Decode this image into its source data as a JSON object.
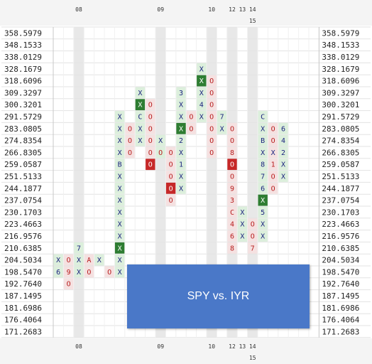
{
  "chart_data": {
    "type": "point_and_figure",
    "overlay_label": "SPY vs. IYR",
    "price_levels": [
      "358.5979",
      "348.1533",
      "338.0129",
      "328.1679",
      "318.6096",
      "309.3297",
      "300.3201",
      "291.5729",
      "283.0805",
      "274.8354",
      "266.8305",
      "259.0587",
      "251.5133",
      "244.1877",
      "237.0754",
      "230.1703",
      "223.4663",
      "216.9576",
      "210.6385",
      "204.5034",
      "198.5470",
      "192.7640",
      "187.1495",
      "181.6986",
      "176.4064",
      "171.2683"
    ],
    "top_markers": [
      {
        "col": 2,
        "line": 1,
        "text": "08"
      },
      {
        "col": 10,
        "line": 1,
        "text": "09"
      },
      {
        "col": 15,
        "line": 1,
        "text": "10"
      },
      {
        "col": 17,
        "line": 1,
        "text": "12"
      },
      {
        "col": 18,
        "line": 1,
        "text": "13"
      },
      {
        "col": 19,
        "line": 1,
        "text": "14"
      },
      {
        "col": 19,
        "line": 2,
        "text": "15"
      }
    ],
    "month_shade_cols": [
      2,
      10,
      15,
      17,
      19
    ],
    "columns": [
      {
        "col": 0,
        "type": "X",
        "marks": [
          [
            19,
            "X"
          ],
          [
            20,
            "6"
          ]
        ]
      },
      {
        "col": 1,
        "type": "O",
        "marks": [
          [
            19,
            "O"
          ],
          [
            20,
            "9"
          ],
          [
            21,
            "O"
          ]
        ]
      },
      {
        "col": 2,
        "type": "X",
        "marks": [
          [
            18,
            "7"
          ],
          [
            19,
            "X"
          ],
          [
            20,
            "X"
          ]
        ]
      },
      {
        "col": 3,
        "type": "O",
        "marks": [
          [
            19,
            "A"
          ],
          [
            20,
            "O"
          ]
        ]
      },
      {
        "col": 4,
        "type": "X",
        "marks": [
          [
            19,
            "X"
          ]
        ]
      },
      {
        "col": 5,
        "type": "O",
        "marks": [
          [
            20,
            "O"
          ]
        ]
      },
      {
        "col": 6,
        "type": "X",
        "marks": [
          [
            7,
            "X"
          ],
          [
            8,
            "X"
          ],
          [
            9,
            "X"
          ],
          [
            10,
            "X"
          ],
          [
            11,
            "B"
          ],
          [
            12,
            "X"
          ],
          [
            13,
            "X"
          ],
          [
            14,
            "X"
          ],
          [
            15,
            "X"
          ],
          [
            16,
            "X"
          ],
          [
            17,
            "X"
          ],
          [
            18,
            "X"
          ],
          [
            19,
            "X"
          ],
          [
            20,
            "X"
          ]
        ]
      },
      {
        "col": 7,
        "type": "O",
        "marks": [
          [
            8,
            "O"
          ],
          [
            9,
            "O"
          ],
          [
            10,
            "O"
          ]
        ]
      },
      {
        "col": 8,
        "type": "X",
        "marks": [
          [
            5,
            "X"
          ],
          [
            6,
            "X"
          ],
          [
            7,
            "C"
          ],
          [
            8,
            "X"
          ],
          [
            9,
            "X"
          ]
        ]
      },
      {
        "col": 9,
        "type": "O",
        "marks": [
          [
            6,
            "O"
          ],
          [
            7,
            "O"
          ],
          [
            8,
            "O"
          ],
          [
            9,
            "O"
          ],
          [
            10,
            "O"
          ],
          [
            11,
            "O"
          ]
        ]
      },
      {
        "col": 10,
        "type": "X",
        "marks": [
          [
            9,
            "X"
          ],
          [
            10,
            "O"
          ]
        ]
      },
      {
        "col": 11,
        "type": "O",
        "marks": [
          [
            10,
            "O"
          ],
          [
            11,
            "O"
          ],
          [
            12,
            "O"
          ],
          [
            13,
            "O"
          ],
          [
            14,
            "O"
          ]
        ]
      },
      {
        "col": 12,
        "type": "X",
        "marks": [
          [
            5,
            "3"
          ],
          [
            6,
            "X"
          ],
          [
            7,
            "X"
          ],
          [
            8,
            "X"
          ],
          [
            9,
            "2"
          ],
          [
            10,
            "X"
          ],
          [
            11,
            "1"
          ],
          [
            12,
            "X"
          ],
          [
            13,
            "X"
          ]
        ]
      },
      {
        "col": 13,
        "type": "O",
        "marks": [
          [
            7,
            "O"
          ],
          [
            8,
            "O"
          ]
        ]
      },
      {
        "col": 14,
        "type": "X",
        "marks": [
          [
            3,
            "X"
          ],
          [
            4,
            "X"
          ],
          [
            5,
            "X"
          ],
          [
            6,
            "4"
          ],
          [
            7,
            "X"
          ]
        ]
      },
      {
        "col": 15,
        "type": "O",
        "marks": [
          [
            4,
            "O"
          ],
          [
            5,
            "O"
          ],
          [
            6,
            "O"
          ],
          [
            7,
            "O"
          ],
          [
            8,
            "O"
          ],
          [
            9,
            "O"
          ],
          [
            10,
            "O"
          ]
        ]
      },
      {
        "col": 16,
        "type": "X",
        "marks": [
          [
            7,
            "7"
          ],
          [
            8,
            "X"
          ]
        ]
      },
      {
        "col": 17,
        "type": "O",
        "marks": [
          [
            8,
            "O"
          ],
          [
            9,
            "O"
          ],
          [
            10,
            "8"
          ],
          [
            11,
            "O"
          ],
          [
            12,
            "O"
          ],
          [
            13,
            "9"
          ],
          [
            14,
            "3"
          ],
          [
            15,
            "C"
          ],
          [
            16,
            "4"
          ],
          [
            17,
            "6"
          ],
          [
            18,
            "8"
          ]
        ]
      },
      {
        "col": 18,
        "type": "X",
        "marks": [
          [
            15,
            "X"
          ],
          [
            16,
            "X"
          ],
          [
            17,
            "X"
          ]
        ]
      },
      {
        "col": 19,
        "type": "O",
        "marks": [
          [
            16,
            "O"
          ],
          [
            17,
            "O"
          ],
          [
            18,
            "7"
          ]
        ]
      },
      {
        "col": 20,
        "type": "X",
        "marks": [
          [
            7,
            "C"
          ],
          [
            8,
            "X"
          ],
          [
            9,
            "B"
          ],
          [
            10,
            "X"
          ],
          [
            11,
            "8"
          ],
          [
            12,
            "7"
          ],
          [
            13,
            "6"
          ],
          [
            14,
            "X"
          ],
          [
            15,
            "5"
          ],
          [
            16,
            "X"
          ],
          [
            17,
            "X"
          ]
        ]
      },
      {
        "col": 21,
        "type": "O",
        "marks": [
          [
            8,
            "O"
          ],
          [
            9,
            "O"
          ],
          [
            10,
            "X"
          ],
          [
            11,
            "1"
          ],
          [
            12,
            "O"
          ],
          [
            13,
            "O"
          ]
        ]
      },
      {
        "col": 22,
        "type": "X",
        "marks": [
          [
            8,
            "6"
          ],
          [
            9,
            "4"
          ],
          [
            10,
            "2"
          ],
          [
            11,
            "X"
          ],
          [
            12,
            "X"
          ]
        ]
      }
    ],
    "highlights": [
      {
        "col": 0,
        "row": 18,
        "fill": "#2e7d32",
        "text": "#ffffff"
      },
      {
        "col": 6,
        "row": 18,
        "fill": "#2e7d32",
        "text": "#ffffff"
      },
      {
        "col": 8,
        "row": 6,
        "fill": "#2e7d32",
        "text": "#ffffff"
      },
      {
        "col": 12,
        "row": 8,
        "fill": "#2e7d32",
        "text": "#ffffff"
      },
      {
        "col": 14,
        "row": 4,
        "fill": "#2e7d32",
        "text": "#ffffff"
      },
      {
        "col": 20,
        "row": 14,
        "fill": "#2e7d32",
        "text": "#ffffff"
      },
      {
        "col": 1,
        "row": 22,
        "fill": "#c62828",
        "text": "#ffffff"
      },
      {
        "col": 9,
        "row": 11,
        "fill": "#c62828",
        "text": "#ffffff"
      },
      {
        "col": 11,
        "row": 13,
        "fill": "#c62828",
        "text": "#ffffff"
      },
      {
        "col": 16,
        "row": 9,
        "fill": "#c62828",
        "text": "#ffffff"
      },
      {
        "col": 17,
        "row": 11,
        "fill": "#c62828",
        "text": "#ffffff"
      }
    ],
    "colors": {
      "x_text": "#1a237e",
      "o_text": "#b71c1c",
      "x_bg": "#dcefdc",
      "o_bg": "#f5e1e1",
      "grid": "#e3e3e3",
      "shade": "#e8e8e8"
    }
  }
}
